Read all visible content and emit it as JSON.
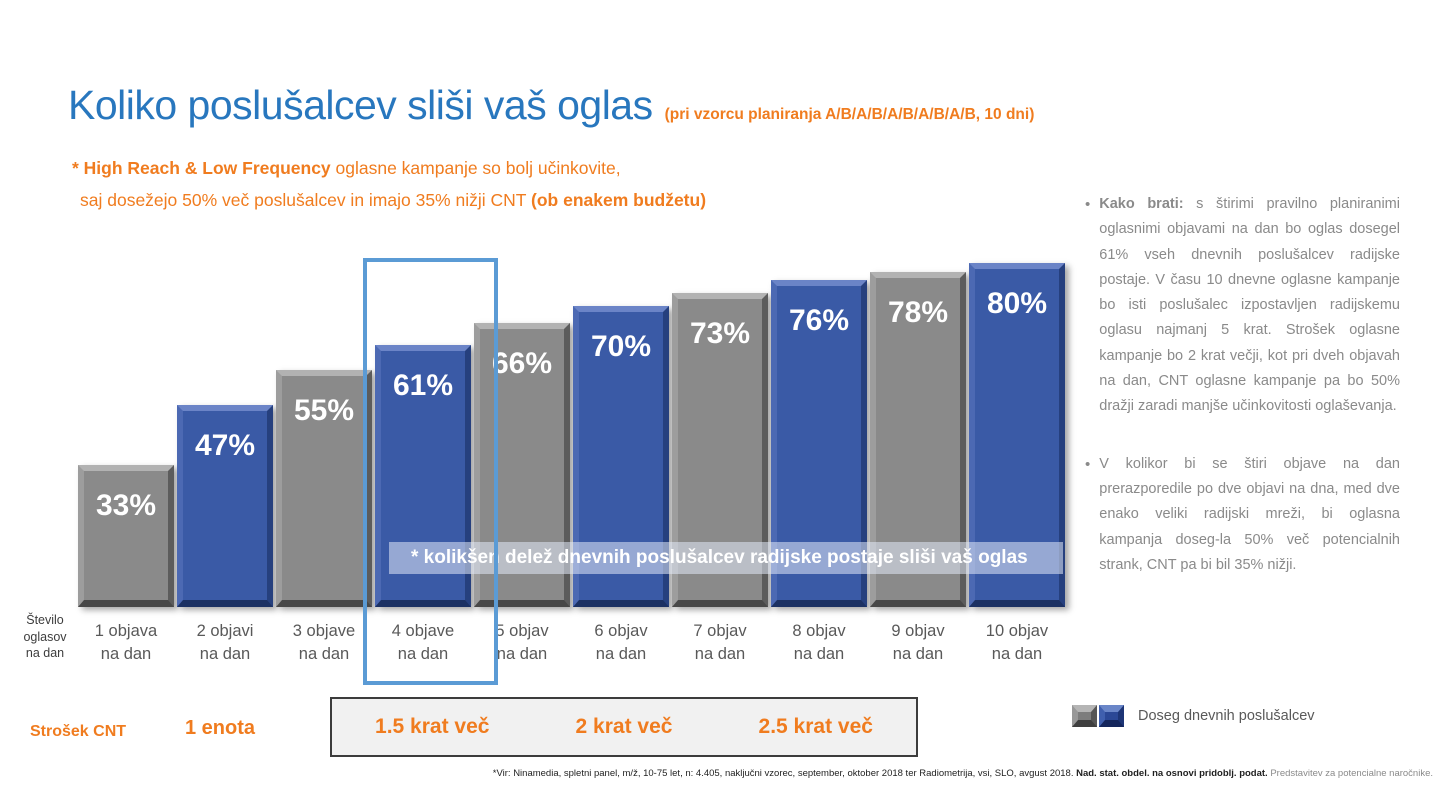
{
  "title": {
    "main": "Koliko poslušalcev sliši vaš oglas",
    "suffix": "(pri vzorcu planiranja A/B/A/B/A/B/A/B/A/B, 10 dni)"
  },
  "subtitle": {
    "line1_bold": "* High Reach & Low Frequency",
    "line1_rest": " oglasne kampanje so bolj učinkovite,",
    "line2_pre": "saj dosežejo 50% več poslušalcev in imajo 35% nižji CNT ",
    "line2_bold": "(ob enakem budžetu)"
  },
  "chart_data": {
    "type": "bar",
    "categories": [
      "1 objava\nna dan",
      "2 objavi\nna dan",
      "3 objave\nna dan",
      "4 objave\nna dan",
      "5 objav\nna dan",
      "6 objav\nna dan",
      "7 objav\nna dan",
      "8 objav\nna dan",
      "9 objav\nna dan",
      "10 objav\nna dan"
    ],
    "values": [
      33,
      47,
      55,
      61,
      66,
      70,
      73,
      76,
      78,
      80
    ],
    "labels": [
      "33%",
      "47%",
      "55%",
      "61%",
      "66%",
      "70%",
      "73%",
      "76%",
      "78%",
      "80%"
    ],
    "bar_colors": [
      "gray",
      "blue",
      "gray",
      "blue",
      "gray",
      "blue",
      "gray",
      "blue",
      "gray",
      "blue"
    ],
    "colors": {
      "gray": "#8a8a8a",
      "blue": "#3a5aa6"
    },
    "highlighted_index": 3,
    "highlighted_category": "4 objave na dan",
    "xlabel": "Število\noglasov\nna dan",
    "ylabel": "",
    "ylim": [
      0,
      82
    ],
    "grid": false,
    "legend_position": "bottom-right",
    "annotation": "* kolikšen delež dnevnih poslušalcev radijske postaje sliši vaš oglas"
  },
  "banner": {
    "text": "* kolikšen delež dnevnih poslušalcev radijske postaje sliši vaš oglas"
  },
  "cost": {
    "label": "Strošek CNT",
    "unit": "1 enota",
    "ratios": [
      "1.5 krat več",
      "2 krat več",
      "2.5 krat več"
    ]
  },
  "legend": {
    "label": "Doseg dnevnih poslušalcev"
  },
  "notes": {
    "bullet1_bold": "Kako brati:",
    "bullet1_text": " s štirimi pravilno planiranimi oglasnimi objavami na dan bo oglas dosegel 61% vseh dnevnih poslušalcev radijske postaje. V času 10 dnevne oglasne kampanje bo isti poslušalec izpostavljen radijskemu oglasu najmanj 5 krat. Strošek oglasne kampanje bo 2 krat večji, kot pri dveh objavah na dan, CNT oglasne kampanje pa bo 50% dražji zaradi manjše učinkovitosti oglaševanja.",
    "bullet2_text": "V kolikor bi se štiri objave na dan prerazporedile po dve objavi na dna, med dve enako veliki radijski mreži, bi oglasna kampanja doseg-la 50% več potencialnih strank, CNT pa bi bil 35% nižji."
  },
  "footer": {
    "part1": "*Vir: Ninamedia, spletni panel, m/ž, 10-75 let, n: 4.405, naključni vzorec, september, oktober 2018 ter Radiometrija, vsi, SLO, avgust 2018. ",
    "part2": "Nad. stat. obdel. na osnovi pridoblj. podat.",
    "part3": "Predstavitev za potencialne naročnike."
  }
}
